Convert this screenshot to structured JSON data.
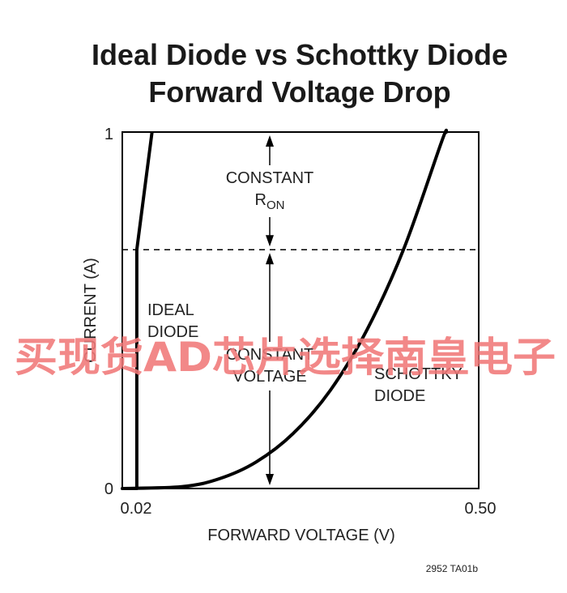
{
  "chart_data": {
    "type": "line",
    "title": "Ideal Diode vs Schottky Diode",
    "subtitle": "Forward Voltage Drop",
    "xlabel": "FORWARD VOLTAGE (V)",
    "ylabel": "CURRENT (A)",
    "xlim": [
      0.02,
      0.5
    ],
    "ylim": [
      0,
      1
    ],
    "x_tick_labels": [
      "0.02",
      "0.50"
    ],
    "y_tick_labels": [
      "0",
      "1"
    ],
    "grid": false,
    "reference_line": {
      "y": 0.67,
      "style": "dashed"
    },
    "series": [
      {
        "name": "IDEAL DIODE",
        "x": [
          0.02,
          0.0395,
          0.0395,
          0.06
        ],
        "y": [
          0.0,
          0.0,
          0.67,
          1.0
        ]
      },
      {
        "name": "SCHOTTKY DIODE",
        "x": [
          0.02,
          0.1,
          0.15,
          0.2,
          0.25,
          0.3,
          0.35,
          0.4,
          0.45,
          0.4565
        ],
        "y": [
          0.0,
          0.005,
          0.027,
          0.074,
          0.154,
          0.275,
          0.447,
          0.677,
          0.973,
          1.0
        ]
      }
    ],
    "annotations": [
      {
        "lines": [
          "CONSTANT",
          "R",
          "ON"
        ],
        "arrow_y_range": [
          0.67,
          1.0
        ]
      },
      {
        "lines": [
          "CONSTANT",
          "VOLTAGE"
        ],
        "arrow_y_range": [
          0.0,
          0.67
        ]
      }
    ],
    "series_labels": {
      "ideal": [
        "IDEAL",
        "DIODE"
      ],
      "schottky": [
        "SCHOTTKY",
        "DIODE"
      ]
    },
    "figure_code": "2952 TA01b"
  },
  "watermark": "买现货AD芯片选择南皇电子",
  "colors": {
    "line": "#000000",
    "text": "#222222",
    "watermark": "#f07878"
  }
}
